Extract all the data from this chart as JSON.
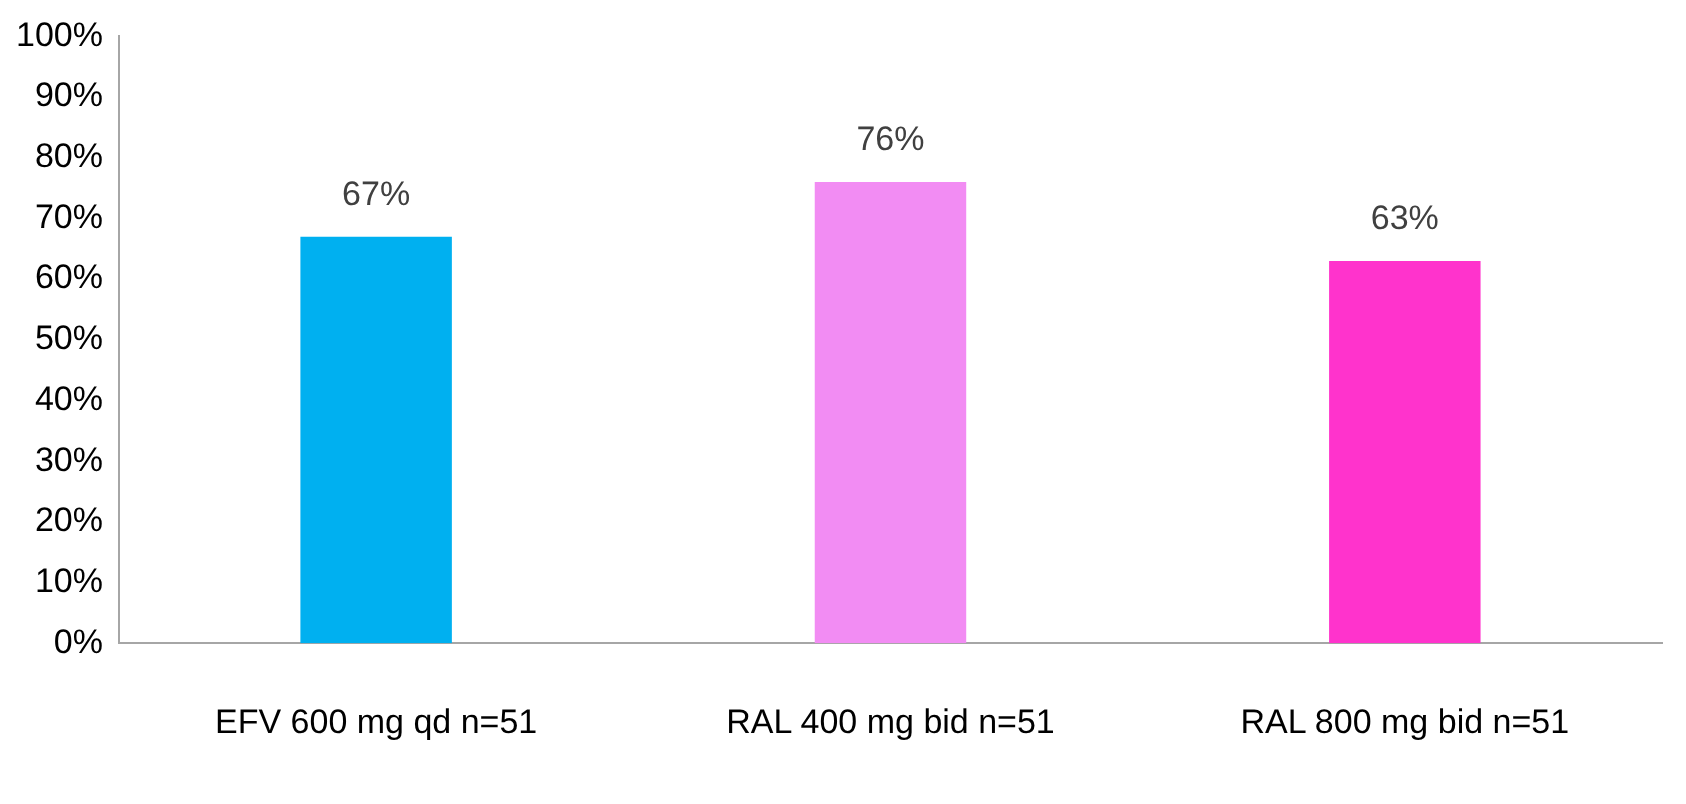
{
  "chart_data": {
    "type": "bar",
    "categories": [
      "EFV 600 mg qd n=51",
      "RAL 400 mg bid n=51",
      "RAL 800 mg bid n=51"
    ],
    "values": [
      67,
      76,
      63
    ],
    "colors": [
      "#00b0f0",
      "#f28cf3",
      "#ff33cc"
    ],
    "value_labels": [
      "67%",
      "76%",
      "63%"
    ],
    "ylim": [
      0,
      100
    ],
    "yticks": [
      {
        "value": 0,
        "label": "0%"
      },
      {
        "value": 10,
        "label": "10%"
      },
      {
        "value": 20,
        "label": "20%"
      },
      {
        "value": 30,
        "label": "30%"
      },
      {
        "value": 40,
        "label": "40%"
      },
      {
        "value": 50,
        "label": "50%"
      },
      {
        "value": 60,
        "label": "60%"
      },
      {
        "value": 70,
        "label": "70%"
      },
      {
        "value": 80,
        "label": "80%"
      },
      {
        "value": 90,
        "label": "90%"
      },
      {
        "value": 100,
        "label": "100%"
      }
    ],
    "grid": false,
    "legend": false
  }
}
